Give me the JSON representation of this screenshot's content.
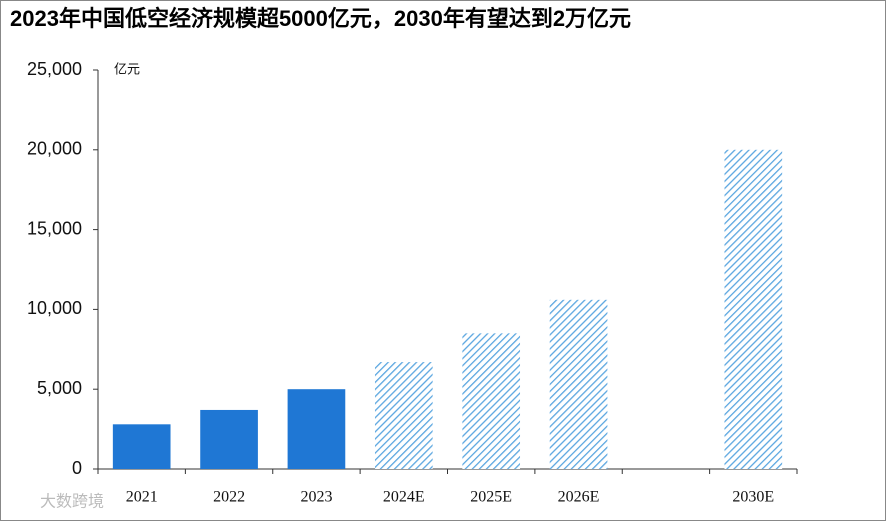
{
  "chart_data": {
    "type": "bar",
    "title": "2023年中国低空经济规模超5000亿元，2030年有望达到2万亿元",
    "unit_label": "亿元",
    "watermark": "大数跨境",
    "categories": [
      "2021",
      "2022",
      "2023",
      "2024E",
      "2025E",
      "2026E",
      null,
      "2030E"
    ],
    "values": [
      2800,
      3700,
      5000,
      6700,
      8500,
      10600,
      null,
      20000
    ],
    "hatched": [
      false,
      false,
      false,
      true,
      true,
      true,
      null,
      true
    ],
    "color": "#1f77d4",
    "hatch_color": "#5aa6e0",
    "ylim": [
      0,
      25000
    ],
    "yticks": [
      0,
      {
        "value": 5000,
        "label": "5,000"
      },
      {
        "value": 10000,
        "label": "10,000"
      },
      {
        "value": 15000,
        "label": "15,000"
      },
      {
        "value": 20000,
        "label": "20,000"
      },
      {
        "value": 25000,
        "label": "25,000"
      }
    ]
  }
}
